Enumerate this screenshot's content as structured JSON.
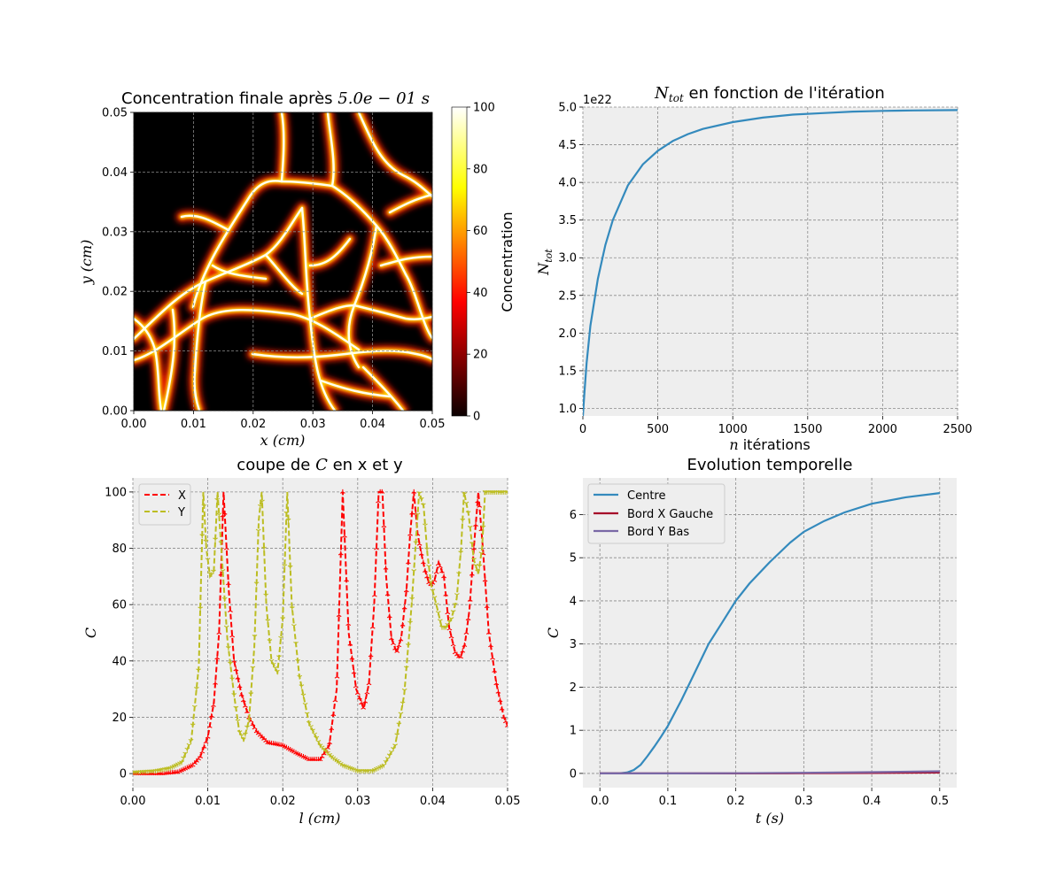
{
  "chart_data": [
    {
      "type": "heatmap",
      "title": "Concentration finale après",
      "title_math": "5.0e − 01 s",
      "xlabel": "x (cm)",
      "ylabel": "y (cm)",
      "xlim": [
        0,
        0.05
      ],
      "ylim": [
        0,
        0.05
      ],
      "xticks": [
        "0.00",
        "0.01",
        "0.02",
        "0.03",
        "0.04",
        "0.05"
      ],
      "yticks": [
        "0.00",
        "0.01",
        "0.02",
        "0.03",
        "0.04",
        "0.05"
      ],
      "colormap": "hot",
      "colorbar": {
        "label": "Concentration",
        "range": [
          0,
          100
        ],
        "ticks": [
          "0",
          "20",
          "40",
          "60",
          "80",
          "100"
        ]
      },
      "grid": true,
      "description_values": "bright filament network (C ≈ 100) on dark background (C ≈ 0)"
    },
    {
      "type": "line",
      "title": "en fonction de l'itération",
      "title_math": "N_tot",
      "xlabel_math": "n",
      "xlabel": "itérations",
      "ylabel": "N_tot",
      "offset_text": "1e22",
      "xlim": [
        0,
        2500
      ],
      "ylim": [
        0.9,
        5.0
      ],
      "xticks": [
        "0",
        "500",
        "1000",
        "1500",
        "2000",
        "2500"
      ],
      "yticks": [
        "1.0",
        "1.5",
        "2.0",
        "2.5",
        "3.0",
        "3.5",
        "4.0",
        "4.5",
        "5.0"
      ],
      "grid": true,
      "series": [
        {
          "color": "#348abd",
          "x": [
            0,
            10,
            25,
            50,
            100,
            150,
            200,
            300,
            400,
            500,
            600,
            700,
            800,
            1000,
            1200,
            1400,
            1600,
            1800,
            2000,
            2200,
            2500
          ],
          "y": [
            0.9,
            1.2,
            1.6,
            2.1,
            2.72,
            3.17,
            3.5,
            3.96,
            4.24,
            4.42,
            4.55,
            4.64,
            4.71,
            4.8,
            4.86,
            4.9,
            4.92,
            4.94,
            4.95,
            4.955,
            4.96
          ]
        }
      ]
    },
    {
      "type": "line",
      "title": "coupe de",
      "title_math": "C",
      "title_suffix": "en x et y",
      "xlabel": "l (cm)",
      "ylabel": "C",
      "xlim": [
        0,
        0.05
      ],
      "ylim": [
        -5,
        105
      ],
      "xticks": [
        "0.00",
        "0.01",
        "0.02",
        "0.03",
        "0.04",
        "0.05"
      ],
      "yticks": [
        "0",
        "20",
        "40",
        "60",
        "80",
        "100"
      ],
      "grid": true,
      "legend": "upper-left",
      "series": [
        {
          "name": "X",
          "color": "#ff0000",
          "style": "dashed",
          "marker": "tri_up",
          "x": [
            0,
            0.004,
            0.006,
            0.008,
            0.009,
            0.01,
            0.0108,
            0.0115,
            0.0121,
            0.0128,
            0.0135,
            0.0145,
            0.0155,
            0.0165,
            0.018,
            0.02,
            0.022,
            0.0235,
            0.025,
            0.0262,
            0.0272,
            0.028,
            0.0288,
            0.0298,
            0.0308,
            0.0315,
            0.0322,
            0.0328,
            0.0333,
            0.0338,
            0.0345,
            0.0352,
            0.0358,
            0.0365,
            0.037,
            0.0375,
            0.038,
            0.0385,
            0.039,
            0.0396,
            0.0402,
            0.0408,
            0.0415,
            0.0422,
            0.043,
            0.0437,
            0.0443,
            0.0449,
            0.0455,
            0.0461,
            0.0467,
            0.0475,
            0.0485,
            0.0495,
            0.05
          ],
          "y": [
            0,
            0,
            0.5,
            3,
            6,
            13,
            25,
            50,
            100,
            65,
            40,
            28,
            20,
            15,
            11,
            10,
            7,
            5,
            5,
            10,
            30,
            100,
            50,
            30,
            23,
            32,
            60,
            100,
            100,
            70,
            48,
            43,
            48,
            65,
            85,
            100,
            85,
            78,
            72,
            67,
            68,
            75,
            70,
            52,
            43,
            41,
            46,
            58,
            80,
            100,
            80,
            50,
            32,
            20,
            17
          ]
        },
        {
          "name": "Y",
          "color": "#bcbd22",
          "style": "dashed",
          "marker": "tri_down",
          "x": [
            0,
            0.003,
            0.005,
            0.0065,
            0.0078,
            0.0088,
            0.0094,
            0.0098,
            0.0103,
            0.0108,
            0.0113,
            0.0118,
            0.0126,
            0.0135,
            0.0142,
            0.0148,
            0.0155,
            0.0162,
            0.0168,
            0.0172,
            0.0178,
            0.0185,
            0.0193,
            0.02,
            0.0206,
            0.0212,
            0.0222,
            0.0235,
            0.025,
            0.0265,
            0.028,
            0.03,
            0.032,
            0.0335,
            0.035,
            0.0362,
            0.0372,
            0.0382,
            0.0388,
            0.0393,
            0.0398,
            0.0405,
            0.0412,
            0.0418,
            0.0425,
            0.0432,
            0.0438,
            0.0442,
            0.0448,
            0.0455,
            0.0461,
            0.0466,
            0.047,
            0.0475,
            0.05
          ],
          "y": [
            0.5,
            1,
            2,
            4,
            12,
            38,
            100,
            80,
            70,
            72,
            100,
            80,
            48,
            28,
            15,
            12,
            19,
            45,
            90,
            100,
            60,
            40,
            36,
            55,
            100,
            60,
            35,
            18,
            10,
            6,
            3,
            1,
            1,
            3,
            10,
            28,
            60,
            100,
            95,
            78,
            67,
            60,
            52,
            52,
            55,
            62,
            80,
            100,
            92,
            76,
            71,
            80,
            100,
            100,
            100
          ]
        }
      ]
    },
    {
      "type": "line",
      "title": "Evolution temporelle",
      "xlabel": "t (s)",
      "ylabel": "C",
      "xlim": [
        -0.025,
        0.525
      ],
      "ylim": [
        -0.33,
        6.85
      ],
      "xticks": [
        "0.0",
        "0.1",
        "0.2",
        "0.3",
        "0.4",
        "0.5"
      ],
      "yticks": [
        "0",
        "1",
        "2",
        "3",
        "4",
        "5",
        "6"
      ],
      "grid": true,
      "legend": "upper-left",
      "series": [
        {
          "name": "Centre",
          "color": "#348abd",
          "x": [
            0,
            0.02,
            0.03,
            0.04,
            0.05,
            0.06,
            0.07,
            0.08,
            0.09,
            0.1,
            0.12,
            0.14,
            0.16,
            0.18,
            0.2,
            0.22,
            0.25,
            0.28,
            0.3,
            0.33,
            0.36,
            0.4,
            0.45,
            0.5
          ],
          "y": [
            0,
            0,
            0.005,
            0.02,
            0.08,
            0.2,
            0.4,
            0.62,
            0.85,
            1.1,
            1.7,
            2.35,
            3.0,
            3.5,
            4.0,
            4.4,
            4.9,
            5.35,
            5.6,
            5.85,
            6.05,
            6.25,
            6.4,
            6.5
          ]
        },
        {
          "name": "Bord X Gauche",
          "color": "#a60628",
          "x": [
            0,
            0.1,
            0.2,
            0.3,
            0.4,
            0.5
          ],
          "y": [
            0,
            0,
            0,
            0.005,
            0.01,
            0.02
          ]
        },
        {
          "name": "Bord Y Bas",
          "color": "#7a68a6",
          "x": [
            0,
            0.1,
            0.2,
            0.3,
            0.4,
            0.5
          ],
          "y": [
            0,
            0.001,
            0.005,
            0.015,
            0.03,
            0.05
          ]
        }
      ]
    }
  ]
}
